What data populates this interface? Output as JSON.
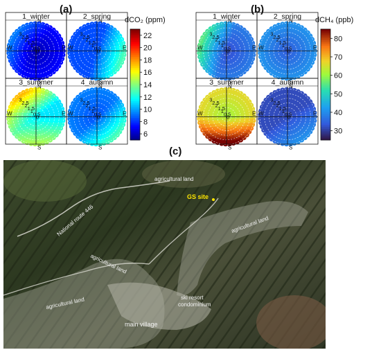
{
  "panels": {
    "a": {
      "letter": "(a)",
      "colorbar": {
        "title": "dCO₂ (ppm)",
        "ticks": [
          22,
          20,
          18,
          16,
          14,
          12,
          10,
          8,
          6
        ],
        "min": 5,
        "max": 23
      },
      "seasons": [
        "1_winter",
        "2_spring",
        "3_summer",
        "4_autumn"
      ],
      "dirs": {
        "n": "N",
        "e": "E",
        "s": "S",
        "w": "W"
      },
      "ring_labels": [
        "3",
        "2.5",
        "2",
        "1.5",
        "1",
        "0.5",
        "0"
      ]
    },
    "b": {
      "letter": "(b)",
      "colorbar": {
        "title": "dCH₄ (ppb)",
        "ticks": [
          80,
          70,
          60,
          50,
          40,
          30
        ],
        "min": 25,
        "max": 85
      },
      "seasons": [
        "1_winter",
        "2_spring",
        "3_summer",
        "4_autumn"
      ],
      "dirs": {
        "n": "N",
        "e": "E",
        "s": "S",
        "w": "W"
      },
      "ring_labels": [
        "3",
        "2.5",
        "2",
        "1.5",
        "1",
        "0.5",
        "0"
      ]
    },
    "c": {
      "letter": "(c)",
      "labels": {
        "ag1": "agricultural land",
        "gs": "GS site",
        "route": "National route 446",
        "ag2": "agricultural land",
        "ag3": "agricultural land",
        "ag4": "agricultural land",
        "ski": "ski resort",
        "condo": "condominium",
        "village": "main village"
      }
    }
  },
  "chart_data": [
    {
      "type": "heatmap",
      "title": "dCO₂ (ppm)",
      "projection": "polar",
      "panels": [
        "1_winter",
        "2_spring",
        "3_summer",
        "4_autumn"
      ],
      "radial_ticks": [
        0,
        0.5,
        1,
        1.5,
        2,
        2.5,
        3
      ],
      "colorbar_range": [
        5,
        23
      ],
      "colorbar_ticks": [
        6,
        8,
        10,
        12,
        14,
        16,
        18,
        20,
        22
      ]
    },
    {
      "type": "heatmap",
      "title": "dCH₄ (ppb)",
      "projection": "polar",
      "panels": [
        "1_winter",
        "2_spring",
        "3_summer",
        "4_autumn"
      ],
      "radial_ticks": [
        0,
        0.5,
        1,
        1.5,
        2,
        2.5,
        3
      ],
      "colorbar_range": [
        25,
        85
      ],
      "colorbar_ticks": [
        30,
        40,
        50,
        60,
        70,
        80
      ]
    }
  ]
}
